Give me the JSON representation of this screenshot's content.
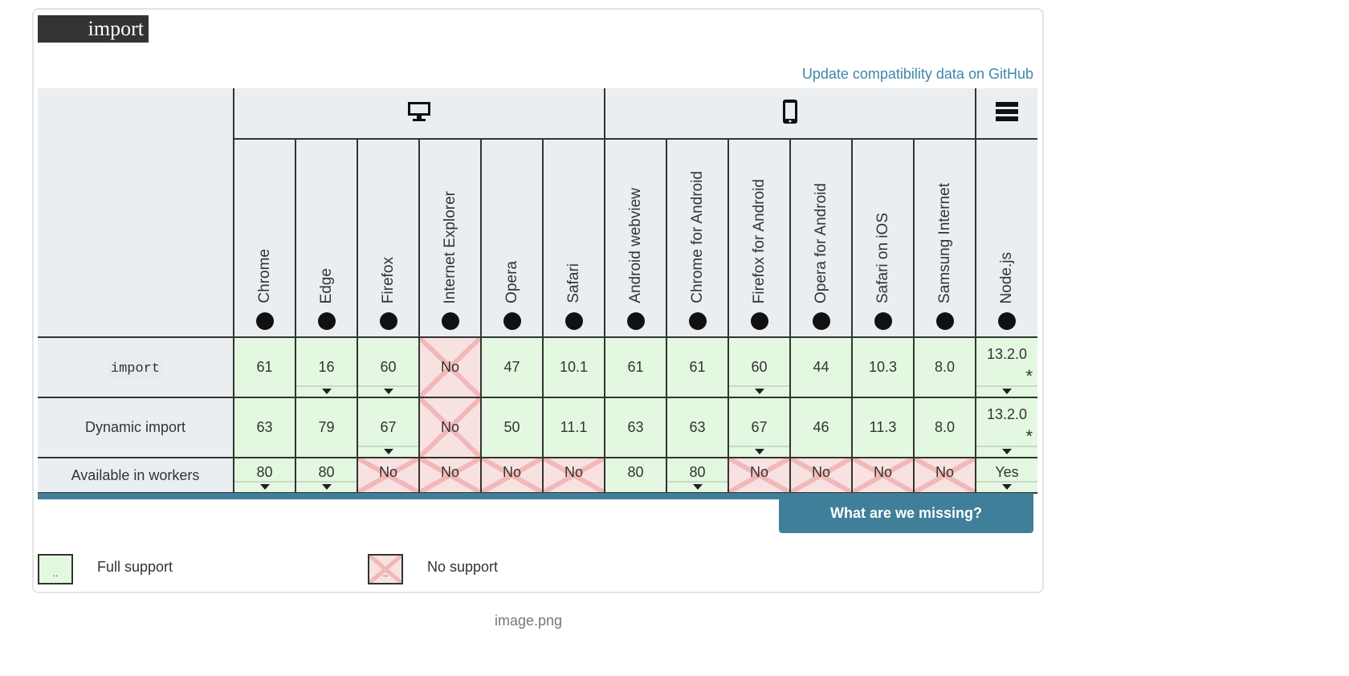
{
  "title": "import",
  "github_link": "Update compatibility data on GitHub",
  "groups": [
    {
      "name": "desktop",
      "icon": "desktop-icon",
      "span": 6
    },
    {
      "name": "mobile",
      "icon": "mobile-icon",
      "span": 6
    },
    {
      "name": "server",
      "icon": "server-icon",
      "span": 1
    }
  ],
  "browsers": [
    {
      "name": "Chrome",
      "icon": "chrome-icon"
    },
    {
      "name": "Edge",
      "icon": "edge-icon"
    },
    {
      "name": "Firefox",
      "icon": "firefox-icon"
    },
    {
      "name": "Internet Explorer",
      "icon": "ie-icon"
    },
    {
      "name": "Opera",
      "icon": "opera-icon"
    },
    {
      "name": "Safari",
      "icon": "safari-icon"
    },
    {
      "name": "Android webview",
      "icon": "android-icon"
    },
    {
      "name": "Chrome for Android",
      "icon": "chrome-icon"
    },
    {
      "name": "Firefox for Android",
      "icon": "firefox-icon"
    },
    {
      "name": "Opera for Android",
      "icon": "opera-icon"
    },
    {
      "name": "Safari on iOS",
      "icon": "safari-icon"
    },
    {
      "name": "Samsung Internet",
      "icon": "samsung-internet-icon"
    },
    {
      "name": "Node.js",
      "icon": "nodejs-icon"
    }
  ],
  "rows": [
    {
      "feature": "import",
      "code": true,
      "cells": [
        {
          "v": "61",
          "s": "yes"
        },
        {
          "v": "16",
          "s": "yes",
          "n": true
        },
        {
          "v": "60",
          "s": "yes",
          "n": true
        },
        {
          "v": "No",
          "s": "no"
        },
        {
          "v": "47",
          "s": "yes"
        },
        {
          "v": "10.1",
          "s": "yes"
        },
        {
          "v": "61",
          "s": "yes"
        },
        {
          "v": "61",
          "s": "yes"
        },
        {
          "v": "60",
          "s": "yes",
          "n": true
        },
        {
          "v": "44",
          "s": "yes"
        },
        {
          "v": "10.3",
          "s": "yes"
        },
        {
          "v": "8.0",
          "s": "yes"
        },
        {
          "v": "13.2.0",
          "s": "yes",
          "n": true,
          "flag": "*"
        }
      ]
    },
    {
      "feature": "Dynamic import",
      "code": false,
      "cells": [
        {
          "v": "63",
          "s": "yes"
        },
        {
          "v": "79",
          "s": "yes"
        },
        {
          "v": "67",
          "s": "yes",
          "n": true
        },
        {
          "v": "No",
          "s": "no"
        },
        {
          "v": "50",
          "s": "yes"
        },
        {
          "v": "11.1",
          "s": "yes"
        },
        {
          "v": "63",
          "s": "yes"
        },
        {
          "v": "63",
          "s": "yes"
        },
        {
          "v": "67",
          "s": "yes",
          "n": true
        },
        {
          "v": "46",
          "s": "yes"
        },
        {
          "v": "11.3",
          "s": "yes"
        },
        {
          "v": "8.0",
          "s": "yes"
        },
        {
          "v": "13.2.0",
          "s": "yes",
          "n": true,
          "flag": "*"
        }
      ]
    },
    {
      "feature": "Available in workers",
      "code": false,
      "cells": [
        {
          "v": "80",
          "s": "yes",
          "n": true
        },
        {
          "v": "80",
          "s": "yes",
          "n": true
        },
        {
          "v": "No",
          "s": "no"
        },
        {
          "v": "No",
          "s": "no"
        },
        {
          "v": "No",
          "s": "no"
        },
        {
          "v": "No",
          "s": "no"
        },
        {
          "v": "80",
          "s": "yes"
        },
        {
          "v": "80",
          "s": "yes",
          "n": true
        },
        {
          "v": "No",
          "s": "no"
        },
        {
          "v": "No",
          "s": "no"
        },
        {
          "v": "No",
          "s": "no"
        },
        {
          "v": "No",
          "s": "no"
        },
        {
          "v": "Yes",
          "s": "yes",
          "n": true
        }
      ]
    }
  ],
  "missing_button": "What are we missing?",
  "legend": {
    "full": "Full support",
    "none": "No support",
    "swatch": ".."
  },
  "caption": "image.png"
}
